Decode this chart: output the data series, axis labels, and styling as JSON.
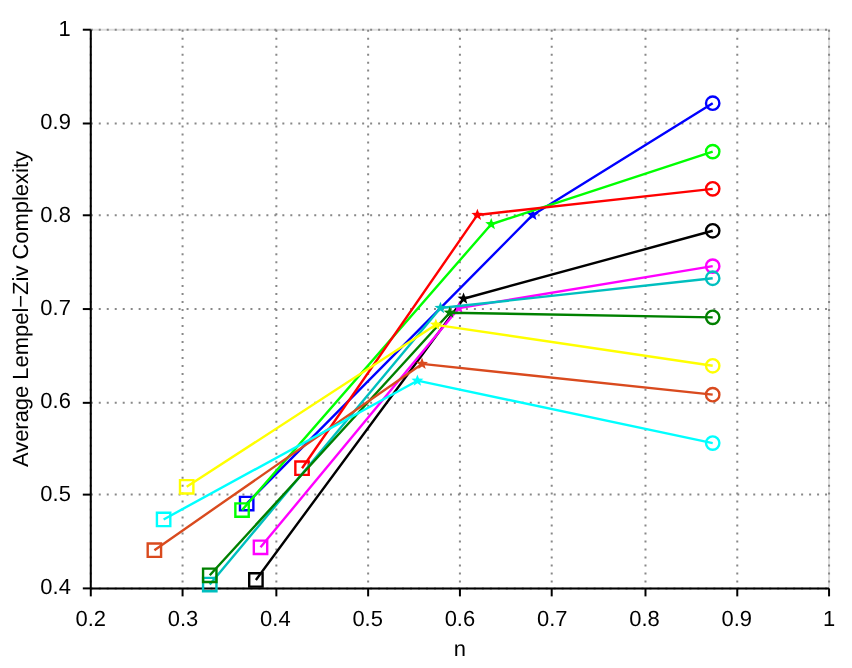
{
  "chart_data": {
    "type": "line",
    "xlabel": "n",
    "ylabel": "Average Lempel−Ziv Complexity",
    "xlim": [
      0.2,
      1
    ],
    "xticks": [
      0.2,
      0.3,
      0.4,
      0.5,
      0.6,
      0.7,
      0.8,
      0.9,
      1
    ],
    "ylim": [
      0.4,
      1
    ],
    "yticks": [
      0.4,
      0.5,
      0.6,
      0.7,
      0.8,
      0.9,
      1
    ],
    "grid": true,
    "line_style": "solid",
    "marker": [
      "square",
      "star",
      "circle"
    ],
    "series": [
      {
        "color": "#0000ff",
        "x": [
          0.37,
          0.68,
          0.875
        ],
        "values": [
          0.49,
          0.8,
          0.92
        ]
      },
      {
        "color": "#00ff00",
        "x": [
          0.365,
          0.635,
          0.875
        ],
        "values": [
          0.483,
          0.79,
          0.868
        ]
      },
      {
        "color": "#ff0000",
        "x": [
          0.43,
          0.62,
          0.875
        ],
        "values": [
          0.528,
          0.8,
          0.828
        ]
      },
      {
        "color": "#000000",
        "x": [
          0.38,
          0.605,
          0.875
        ],
        "values": [
          0.408,
          0.71,
          0.783
        ]
      },
      {
        "color": "#ff00ff",
        "x": [
          0.385,
          0.6,
          0.875
        ],
        "values": [
          0.443,
          0.7,
          0.745
        ]
      },
      {
        "color": "#00bfbf",
        "x": [
          0.33,
          0.58,
          0.875
        ],
        "values": [
          0.403,
          0.7,
          0.732
        ]
      },
      {
        "color": "#008000",
        "x": [
          0.33,
          0.59,
          0.875
        ],
        "values": [
          0.413,
          0.695,
          0.69
        ]
      },
      {
        "color": "#ffff00",
        "x": [
          0.305,
          0.575,
          0.875
        ],
        "values": [
          0.508,
          0.682,
          0.638
        ]
      },
      {
        "color": "#d94a1e",
        "x": [
          0.27,
          0.56,
          0.875
        ],
        "values": [
          0.44,
          0.64,
          0.607
        ]
      },
      {
        "color": "#00ffff",
        "x": [
          0.28,
          0.555,
          0.875
        ],
        "values": [
          0.473,
          0.622,
          0.555
        ]
      }
    ]
  }
}
